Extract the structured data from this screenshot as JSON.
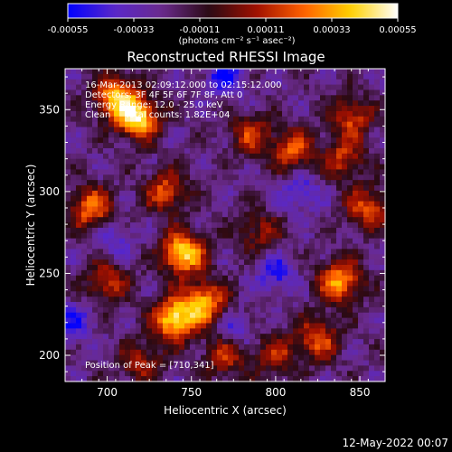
{
  "chart_data": {
    "type": "heatmap",
    "title": "Reconstructed RHESSI Image",
    "xlabel": "Heliocentric X (arcsec)",
    "ylabel": "Heliocentric Y (arcsec)",
    "xlim": [
      675,
      865
    ],
    "ylim": [
      184,
      375
    ],
    "x_ticks": [
      "700",
      "750",
      "800",
      "850"
    ],
    "x_tick_values": [
      700,
      750,
      800,
      850
    ],
    "y_ticks": [
      "200",
      "250",
      "300",
      "350"
    ],
    "y_tick_values": [
      200,
      250,
      300,
      350
    ],
    "colorbar": {
      "ticks": [
        "-0.00055",
        "-0.00033",
        "-0.00011",
        "0.00011",
        "0.00033",
        "0.00055"
      ],
      "tick_values": [
        -0.00055,
        -0.00033,
        -0.00011,
        0.00011,
        0.00033,
        0.00055
      ],
      "units_label": "(photons cm⁻² s⁻¹ asec⁻²)",
      "range": [
        -0.00055,
        0.00055
      ],
      "palette": [
        "#0000ff",
        "#5a28c8",
        "#6a2a8c",
        "#2a0a14",
        "#a01000",
        "#ff6000",
        "#ffd000",
        "#ffffff"
      ]
    },
    "annotations": {
      "time_range": "16-Mar-2013 02:09:12.000 to 02:15:12.000",
      "detectors": "Detectors: 3F 4F 5F 6F 7F 8F, Att 0",
      "energy_range": "Energy Range: 12.0 - 25.0 keV",
      "clean_counts": "Clean     Total counts: 1.82E+04",
      "peak_position": "Position of Peak = [710,341]"
    },
    "hot_spots": [
      {
        "x": 718,
        "y": 345,
        "level": 1.0
      },
      {
        "x": 705,
        "y": 358,
        "level": 0.8
      },
      {
        "x": 690,
        "y": 290,
        "level": 0.7
      },
      {
        "x": 745,
        "y": 262,
        "level": 1.0
      },
      {
        "x": 740,
        "y": 222,
        "level": 1.0
      },
      {
        "x": 758,
        "y": 232,
        "level": 0.8
      },
      {
        "x": 735,
        "y": 300,
        "level": 0.6
      },
      {
        "x": 785,
        "y": 335,
        "level": 0.5
      },
      {
        "x": 810,
        "y": 325,
        "level": 0.6
      },
      {
        "x": 840,
        "y": 320,
        "level": 0.5
      },
      {
        "x": 845,
        "y": 345,
        "level": 0.55
      },
      {
        "x": 855,
        "y": 290,
        "level": 0.6
      },
      {
        "x": 838,
        "y": 245,
        "level": 0.8
      },
      {
        "x": 825,
        "y": 210,
        "level": 0.6
      },
      {
        "x": 700,
        "y": 245,
        "level": 0.5
      },
      {
        "x": 770,
        "y": 200,
        "level": 0.5
      },
      {
        "x": 790,
        "y": 275,
        "level": 0.4
      },
      {
        "x": 720,
        "y": 195,
        "level": 0.45
      },
      {
        "x": 800,
        "y": 200,
        "level": 0.45
      }
    ],
    "cold_spots": [
      {
        "x": 770,
        "y": 370,
        "level": 1.0
      },
      {
        "x": 800,
        "y": 250,
        "level": 0.9
      },
      {
        "x": 815,
        "y": 300,
        "level": 0.8
      },
      {
        "x": 680,
        "y": 220,
        "level": 0.8
      },
      {
        "x": 775,
        "y": 215,
        "level": 0.7
      },
      {
        "x": 705,
        "y": 270,
        "level": 0.6
      }
    ]
  },
  "footer": {
    "timestamp": "12-May-2022 00:07"
  }
}
